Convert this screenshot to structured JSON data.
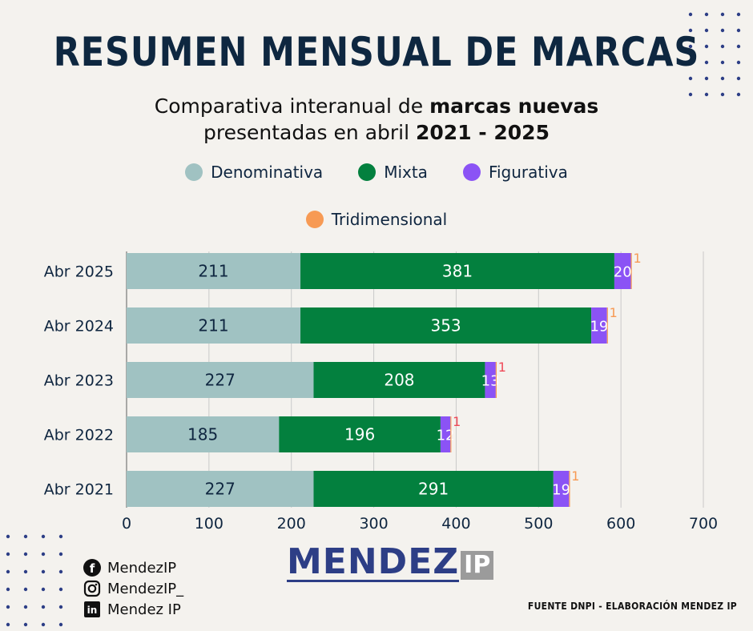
{
  "header": {
    "title": "RESUMEN MENSUAL DE MARCAS",
    "subtitle_line1_pre": "Comparativa interanual de ",
    "subtitle_line1_bold": "marcas nuevas",
    "subtitle_line2_pre": "presentadas en abril ",
    "subtitle_line2_bold": "2021 - 2025"
  },
  "chart_data": {
    "type": "bar",
    "orientation": "horizontal",
    "stacked": true,
    "categories": [
      "Abr 2025",
      "Abr 2024",
      "Abr 2023",
      "Abr 2022",
      "Abr 2021"
    ],
    "series": [
      {
        "name": "Denominativa",
        "color": "#a0c2c2",
        "values": [
          211,
          211,
          227,
          185,
          227
        ]
      },
      {
        "name": "Mixta",
        "color": "#03803e",
        "values": [
          381,
          353,
          208,
          196,
          291
        ]
      },
      {
        "name": "Figurativa",
        "color": "#8b53f5",
        "values": [
          20,
          19,
          13,
          12,
          19
        ]
      },
      {
        "name": "Tridimensional",
        "color": "#f79a54",
        "values": [
          1,
          1,
          1,
          1,
          1
        ]
      }
    ],
    "tridimensional_label_colors": [
      "#f79a54",
      "#f79a54",
      "#ef4a58",
      "#ef4a58",
      "#f79a54"
    ],
    "xlim": [
      0,
      700
    ],
    "xticks": [
      "0",
      "100",
      "200",
      "300",
      "400",
      "500",
      "600",
      "700"
    ],
    "grid": true,
    "legend_position": "top"
  },
  "social": [
    {
      "icon": "facebook-icon",
      "text": "MendezIP"
    },
    {
      "icon": "instagram-icon",
      "text": "MendezIP_"
    },
    {
      "icon": "linkedin-icon",
      "text": "Mendez IP"
    }
  ],
  "logo": {
    "main": "MENDEZ",
    "suffix": "IP"
  },
  "footer": {
    "source": "FUENTE DNPI - ELABORACIÓN MENDEZ IP"
  },
  "colors": {
    "title": "#0e2740",
    "background": "#f4f2ee",
    "dots": "#2d3e86"
  }
}
